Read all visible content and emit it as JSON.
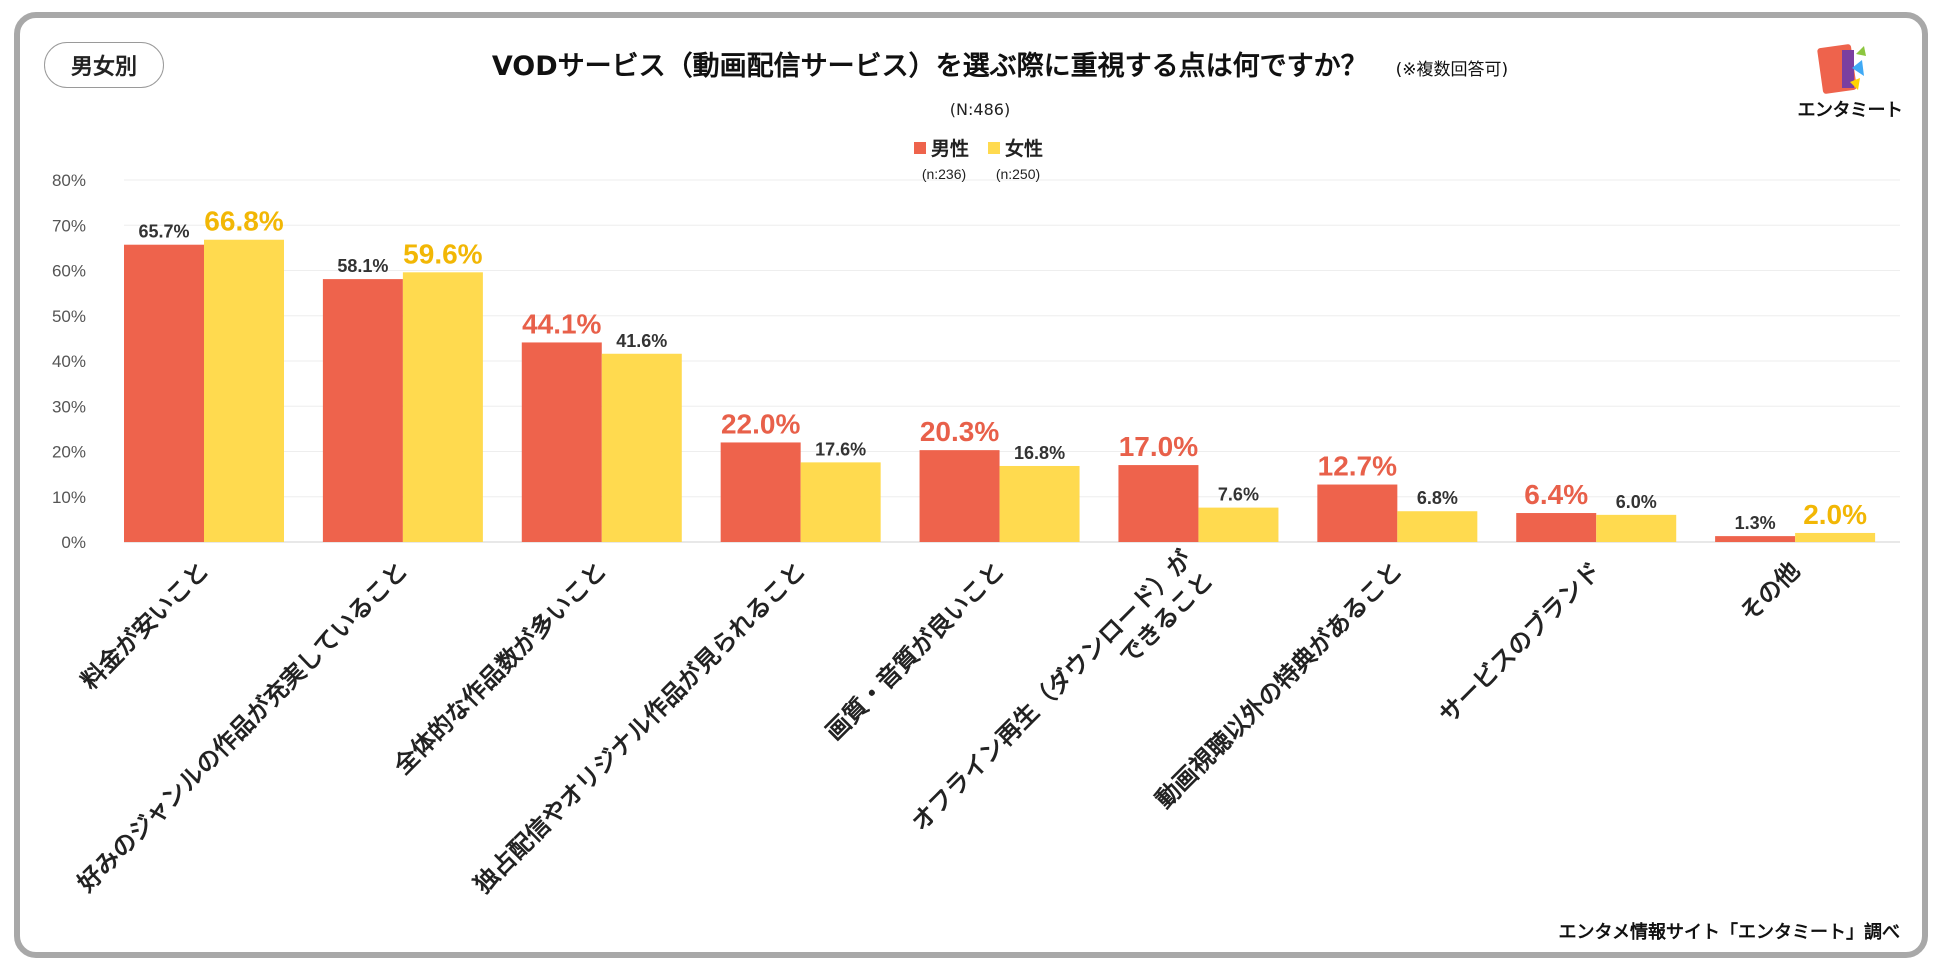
{
  "badge": "男女別",
  "title": "VODサービス（動画配信サービス）を選ぶ際に重視する点は何ですか？",
  "title_note": "(※複数回答可)",
  "sample_size": "(N:486)",
  "logo_text": "エンタミート",
  "source": "エンタメ情報サイト「エンタミート」調べ",
  "colors": {
    "male": "#EE634C",
    "female": "#FFDA4F",
    "highlight_male": "#E8604A",
    "highlight_female": "#F2B705"
  },
  "chart_data": {
    "type": "bar",
    "title": "VODサービス（動画配信サービス）を選ぶ際に重視する点は何ですか？",
    "ylim": [
      0,
      80
    ],
    "yticks": [
      "0%",
      "10%",
      "20%",
      "30%",
      "40%",
      "50%",
      "60%",
      "70%",
      "80%"
    ],
    "categories": [
      "料金が安いこと",
      "好みのジャンルの作品が充実していること",
      "全体的な作品数が多いこと",
      "独占配信やオリジナル作品が見られること",
      "画質・音質が良いこと",
      "オフライン再生（ダウンロード）が\nできること",
      "動画視聴以外の特典があること",
      "サービスのブランド",
      "その他"
    ],
    "series": [
      {
        "name": "男性",
        "n": "(n:236)",
        "values": [
          65.7,
          58.1,
          44.1,
          22.0,
          20.3,
          17.0,
          12.7,
          6.4,
          1.3
        ],
        "labels": [
          "65.7%",
          "58.1%",
          "44.1%",
          "22.0%",
          "20.3%",
          "17.0%",
          "12.7%",
          "6.4%",
          "1.3%"
        ],
        "highlight": [
          false,
          false,
          true,
          true,
          true,
          true,
          true,
          true,
          false
        ]
      },
      {
        "name": "女性",
        "n": "(n:250)",
        "values": [
          66.8,
          59.6,
          41.6,
          17.6,
          16.8,
          7.6,
          6.8,
          6.0,
          2.0
        ],
        "labels": [
          "66.8%",
          "59.6%",
          "41.6%",
          "17.6%",
          "16.8%",
          "7.6%",
          "6.8%",
          "6.0%",
          "2.0%"
        ],
        "highlight": [
          true,
          true,
          false,
          false,
          false,
          false,
          false,
          false,
          true
        ]
      }
    ],
    "legend": "top-center",
    "grid": true
  }
}
